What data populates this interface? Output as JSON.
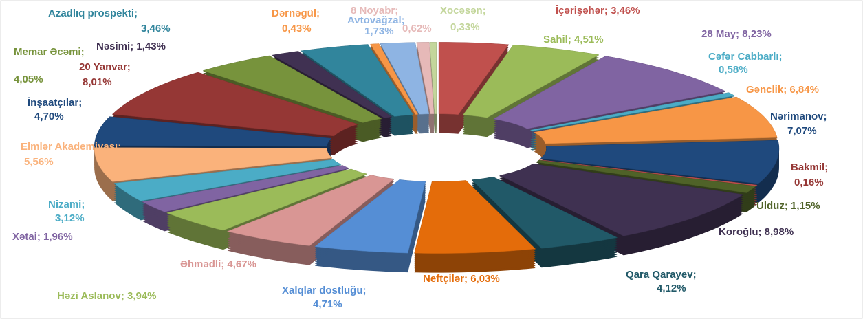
{
  "chart_data": {
    "type": "pie",
    "categories": [
      "İçərişəhər",
      "Sahil",
      "28 May",
      "Cəfər Cabbarlı",
      "Gənclik",
      "Nərimanov",
      "Bakmil",
      "Ulduz",
      "Koroğlu",
      "Qara Qarayev",
      "Neftçilər",
      "Xalqlar dostluğu",
      "Əhmədli",
      "Həzi Aslanov",
      "Xətai",
      "Nizami",
      "Elmlər Akademiyası",
      "İnşaatçılar",
      "20 Yanvar",
      "Memar Əcəmi",
      "Nəsimi",
      "Azadlıq prospekti",
      "Dərnəgül",
      "Avtovağzal",
      "8 Noyabr",
      "Xocəsən"
    ],
    "values": [
      3.46,
      4.51,
      8.23,
      0.58,
      6.84,
      7.07,
      0.16,
      1.15,
      8.98,
      4.12,
      6.03,
      4.71,
      4.67,
      3.94,
      1.96,
      3.12,
      5.56,
      4.7,
      8.01,
      4.05,
      1.43,
      3.46,
      0.43,
      1.73,
      0.62,
      0.33
    ],
    "value_labels": [
      "3,46%",
      "4,51%",
      "8,23%",
      "0,58%",
      "6,84%",
      "7,07%",
      "0,16%",
      "1,15%",
      "8,98%",
      "4,12%",
      "6,03%",
      "4,71%",
      "4,67%",
      "3,94%",
      "1,96%",
      "3,12%",
      "5,56%",
      "4,70%",
      "8,01%",
      "4,05%",
      "1,43%",
      "3,46%",
      "0,43%",
      "1,73%",
      "0,62%",
      "0,33%"
    ],
    "label_separator": "; ",
    "colors": [
      "#c0504d",
      "#9bbb59",
      "#8064a2",
      "#4bacc6",
      "#f79646",
      "#1f497d",
      "#c0504d",
      "#4f6228",
      "#3f3151",
      "#215968",
      "#e46c0a",
      "#558ed5",
      "#d99694",
      "#9bbb59",
      "#8064a2",
      "#4bacc6",
      "#fab27b",
      "#1f497d",
      "#953735",
      "#77933c",
      "#403152",
      "#31859c",
      "#f79646",
      "#8eb4e3",
      "#e6b9b8",
      "#c3d69b"
    ],
    "label_colors": [
      "#c0504d",
      "#9bbb59",
      "#8064a2",
      "#4bacc6",
      "#f79646",
      "#1f497d",
      "#953735",
      "#4f6228",
      "#3f3151",
      "#215968",
      "#e46c0a",
      "#558ed5",
      "#d99694",
      "#9bbb59",
      "#8064a2",
      "#4bacc6",
      "#fab27b",
      "#1f497d",
      "#953735",
      "#77933c",
      "#403152",
      "#31859c",
      "#f79646",
      "#8eb4e3",
      "#e6b9b8",
      "#c3d69b"
    ]
  }
}
